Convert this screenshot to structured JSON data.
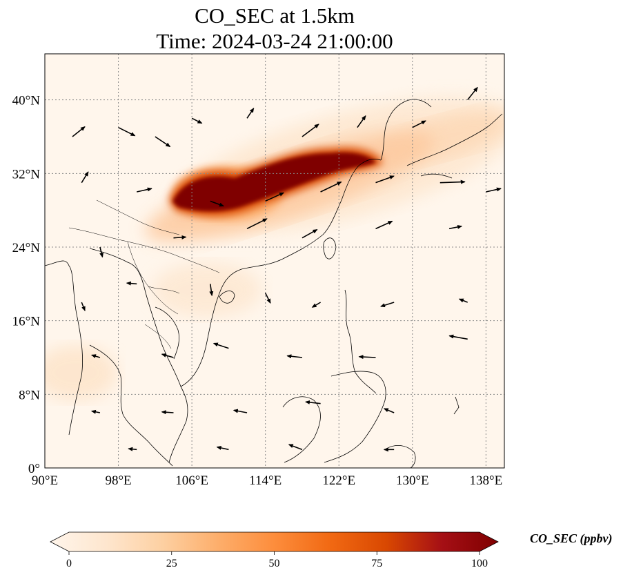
{
  "title_line1": "CO_SEC at 1.5km",
  "title_line2": "Time: 2024-03-24 21:00:00",
  "map": {
    "lon_range": [
      90,
      140
    ],
    "lat_range": [
      0,
      45
    ],
    "lon_ticks": [
      {
        "value": 90,
        "label": "90°E"
      },
      {
        "value": 98,
        "label": "98°E"
      },
      {
        "value": 106,
        "label": "106°E"
      },
      {
        "value": 114,
        "label": "114°E"
      },
      {
        "value": 122,
        "label": "122°E"
      },
      {
        "value": 130,
        "label": "130°E"
      },
      {
        "value": 138,
        "label": "138°E"
      }
    ],
    "lat_ticks": [
      {
        "value": 0,
        "label": "0°"
      },
      {
        "value": 8,
        "label": "8°N"
      },
      {
        "value": 16,
        "label": "16°N"
      },
      {
        "value": 24,
        "label": "24°N"
      },
      {
        "value": 32,
        "label": "32°N"
      },
      {
        "value": 40,
        "label": "40°N"
      }
    ],
    "gridlines": true,
    "variable": "CO_SEC",
    "colormap": [
      "#fff5eb",
      "#fee6ce",
      "#fdd0a2",
      "#fdae6b",
      "#fd8d3c",
      "#f16913",
      "#d94801",
      "#a50f15",
      "#7f0000"
    ],
    "plume_core": [
      {
        "lon": 104.5,
        "lat": 30.0,
        "value": 100
      },
      {
        "lon": 108.0,
        "lat": 30.5,
        "value": 100
      },
      {
        "lon": 112.0,
        "lat": 31.0,
        "value": 95
      },
      {
        "lon": 116.0,
        "lat": 32.0,
        "value": 100
      },
      {
        "lon": 120.0,
        "lat": 33.3,
        "value": 100
      },
      {
        "lon": 123.0,
        "lat": 34.0,
        "value": 90
      }
    ],
    "wind_vectors": [
      {
        "lon": 93,
        "lat": 36,
        "u": 1.5,
        "v": 1.2
      },
      {
        "lon": 98,
        "lat": 37,
        "u": 2.0,
        "v": -1.0
      },
      {
        "lon": 102,
        "lat": 36,
        "u": 1.8,
        "v": -1.2
      },
      {
        "lon": 106,
        "lat": 38,
        "u": 1.2,
        "v": -0.6
      },
      {
        "lon": 112,
        "lat": 38,
        "u": 0.8,
        "v": 1.2
      },
      {
        "lon": 118,
        "lat": 36,
        "u": 2.0,
        "v": 1.5
      },
      {
        "lon": 124,
        "lat": 37,
        "u": 1.0,
        "v": 1.4
      },
      {
        "lon": 130,
        "lat": 37,
        "u": 1.6,
        "v": 0.8
      },
      {
        "lon": 136,
        "lat": 40,
        "u": 1.2,
        "v": 1.5
      },
      {
        "lon": 94,
        "lat": 31,
        "u": 0.8,
        "v": 1.3
      },
      {
        "lon": 100,
        "lat": 30,
        "u": 1.8,
        "v": 0.4
      },
      {
        "lon": 108,
        "lat": 29,
        "u": 1.6,
        "v": -0.6
      },
      {
        "lon": 114,
        "lat": 29,
        "u": 2.2,
        "v": 1.0
      },
      {
        "lon": 120,
        "lat": 30,
        "u": 2.5,
        "v": 1.2
      },
      {
        "lon": 126,
        "lat": 31,
        "u": 2.2,
        "v": 0.8
      },
      {
        "lon": 133,
        "lat": 31,
        "u": 3.0,
        "v": 0.1
      },
      {
        "lon": 138,
        "lat": 30,
        "u": 1.8,
        "v": 0.4
      },
      {
        "lon": 96,
        "lat": 24,
        "u": 0.3,
        "v": -1.2
      },
      {
        "lon": 104,
        "lat": 25,
        "u": 1.5,
        "v": 0.1
      },
      {
        "lon": 112,
        "lat": 26,
        "u": 2.4,
        "v": 1.2
      },
      {
        "lon": 118,
        "lat": 25,
        "u": 1.8,
        "v": 1.0
      },
      {
        "lon": 126,
        "lat": 26,
        "u": 2.0,
        "v": 0.9
      },
      {
        "lon": 134,
        "lat": 26,
        "u": 1.5,
        "v": 0.3
      },
      {
        "lon": 94,
        "lat": 18,
        "u": 0.4,
        "v": -1.0
      },
      {
        "lon": 100,
        "lat": 20,
        "u": -1.2,
        "v": 0.1
      },
      {
        "lon": 108,
        "lat": 20,
        "u": 0.2,
        "v": -1.4
      },
      {
        "lon": 114,
        "lat": 19,
        "u": 0.6,
        "v": -1.2
      },
      {
        "lon": 120,
        "lat": 18,
        "u": -1.0,
        "v": -0.6
      },
      {
        "lon": 128,
        "lat": 18,
        "u": -1.6,
        "v": -0.5
      },
      {
        "lon": 136,
        "lat": 18,
        "u": -1.0,
        "v": 0.4
      },
      {
        "lon": 96,
        "lat": 12,
        "u": -1.0,
        "v": 0.3
      },
      {
        "lon": 104,
        "lat": 12,
        "u": -1.4,
        "v": 0.4
      },
      {
        "lon": 110,
        "lat": 13,
        "u": -1.8,
        "v": 0.6
      },
      {
        "lon": 118,
        "lat": 12,
        "u": -1.8,
        "v": 0.2
      },
      {
        "lon": 126,
        "lat": 12,
        "u": -2.0,
        "v": 0.1
      },
      {
        "lon": 136,
        "lat": 14,
        "u": -2.2,
        "v": 0.4
      },
      {
        "lon": 96,
        "lat": 6,
        "u": -1.0,
        "v": 0.2
      },
      {
        "lon": 104,
        "lat": 6,
        "u": -1.4,
        "v": 0.1
      },
      {
        "lon": 112,
        "lat": 6,
        "u": -1.6,
        "v": 0.3
      },
      {
        "lon": 120,
        "lat": 7,
        "u": -1.8,
        "v": 0.2
      },
      {
        "lon": 128,
        "lat": 6,
        "u": -1.2,
        "v": 0.5
      },
      {
        "lon": 100,
        "lat": 2,
        "u": -1.0,
        "v": 0.1
      },
      {
        "lon": 110,
        "lat": 2,
        "u": -1.4,
        "v": 0.3
      },
      {
        "lon": 118,
        "lat": 2,
        "u": -1.6,
        "v": 0.6
      },
      {
        "lon": 128,
        "lat": 2,
        "u": -1.2,
        "v": 0.0
      }
    ]
  },
  "colorbar": {
    "label": "CO_SEC (ppbv)",
    "min": 0,
    "max": 100,
    "extend": "both",
    "ticks": [
      {
        "value": 0,
        "label": "0"
      },
      {
        "value": 25,
        "label": "25"
      },
      {
        "value": 50,
        "label": "50"
      },
      {
        "value": 75,
        "label": "75"
      },
      {
        "value": 100,
        "label": "100"
      }
    ]
  }
}
